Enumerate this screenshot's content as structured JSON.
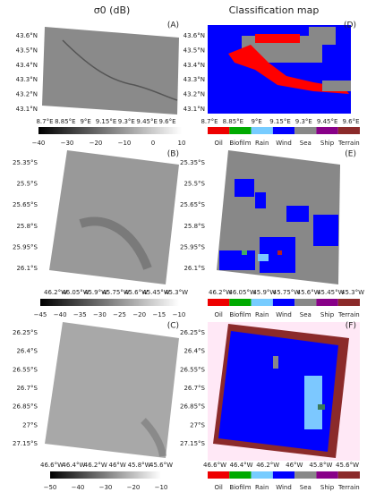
{
  "titles": [
    "σ0 (dB)",
    "Classification map"
  ],
  "legend": [
    "Oil",
    "Biofilm",
    "Rain",
    "Wind",
    "Sea",
    "Ship",
    "Terrain"
  ],
  "rows": [
    {
      "sar_label": "(A)",
      "class_label": "(D)",
      "lat_ticks": [
        "43.6°N",
        "43.5°N",
        "43.4°N",
        "43.3°N",
        "43.2°N",
        "43.1°N"
      ],
      "lon_ticks": [
        "8.7°E",
        "8.85°E",
        "9°E",
        "9.15°E",
        "9.3°E",
        "9.45°E",
        "9.6°E"
      ],
      "colorbar_ticks": [
        "−40",
        "−30",
        "−20",
        "−10",
        "0",
        "10"
      ]
    },
    {
      "sar_label": "(B)",
      "class_label": "(E)",
      "lat_ticks": [
        "25.35°S",
        "25.5°S",
        "25.65°S",
        "25.8°S",
        "25.95°S",
        "26.1°S"
      ],
      "lon_ticks": [
        "46.2°W",
        "46.05°W",
        "45.9°W",
        "45.75°W",
        "45.6°W",
        "45.45°W",
        "45.3°W"
      ],
      "colorbar_ticks": [
        "−45",
        "−40",
        "−35",
        "−30",
        "−25",
        "−20",
        "−15",
        "−10"
      ]
    },
    {
      "sar_label": "(C)",
      "class_label": "(F)",
      "lat_ticks": [
        "26.25°S",
        "26.4°S",
        "26.55°S",
        "26.7°S",
        "26.85°S",
        "27°S",
        "27.15°S"
      ],
      "lon_ticks": [
        "46.6°W",
        "46.4°W",
        "46.2°W",
        "46°W",
        "45.8°W",
        "45.6°W"
      ],
      "colorbar_ticks": [
        "−50",
        "−40",
        "−30",
        "−20",
        "−10"
      ]
    }
  ]
}
